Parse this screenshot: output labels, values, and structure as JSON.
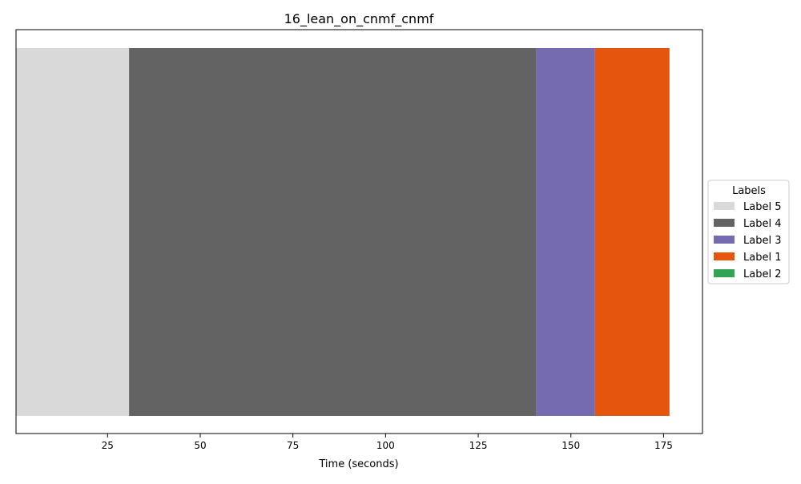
{
  "chart_data": {
    "type": "bar",
    "orientation": "horizontal-segments",
    "title": "16_lean_on_cnmf_cnmf",
    "xlabel": "Time (seconds)",
    "ylabel": "",
    "xlim": [
      0.3,
      185.5
    ],
    "xticks": [
      25,
      50,
      75,
      100,
      125,
      150,
      175
    ],
    "grid": false,
    "legend": {
      "title": "Labels",
      "placement": "right-center",
      "entries": [
        {
          "name": "Label 5",
          "color": "#d9d9d9"
        },
        {
          "name": "Label 4",
          "color": "#636363"
        },
        {
          "name": "Label 3",
          "color": "#756bb1"
        },
        {
          "name": "Label 1",
          "color": "#e6550d"
        },
        {
          "name": "Label 2",
          "color": "#31a354"
        }
      ]
    },
    "segments": [
      {
        "label": "Label 5",
        "start": 0.3,
        "end": 30.8
      },
      {
        "label": "Label 4",
        "start": 30.8,
        "end": 140.7
      },
      {
        "label": "Label 3",
        "start": 140.7,
        "end": 156.5
      },
      {
        "label": "Label 1",
        "start": 156.5,
        "end": 176.6
      }
    ]
  }
}
